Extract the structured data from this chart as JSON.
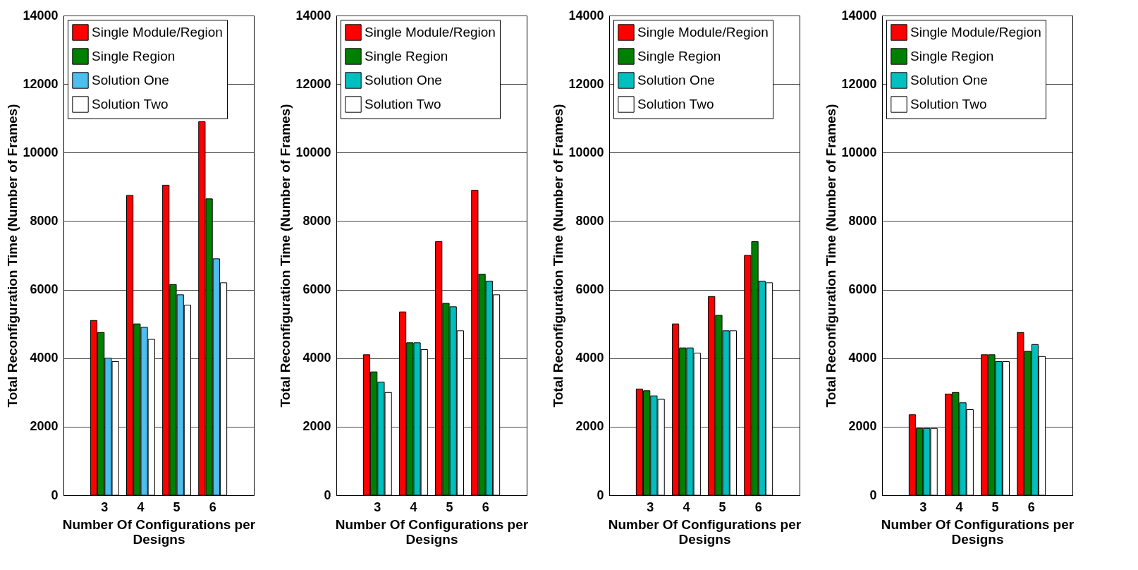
{
  "chart_data": [
    {
      "type": "bar",
      "categories": [
        "3",
        "4",
        "5",
        "6"
      ],
      "xlabel": "Number Of Configurations per Designs",
      "ylabel": "Total Reconfiguration Time (Number of Frames)",
      "ylim": [
        0,
        14000
      ],
      "yticks": [
        0,
        2000,
        4000,
        6000,
        8000,
        10000,
        12000,
        14000
      ],
      "grid": "y",
      "legend": "top left",
      "series": [
        {
          "name": "Single Module/Region",
          "color": "#ff0000",
          "values": [
            5100,
            8750,
            9050,
            10900
          ]
        },
        {
          "name": "Single Region",
          "color": "#008000",
          "values": [
            4750,
            5000,
            6150,
            8650
          ]
        },
        {
          "name": "Solution One",
          "color": "#4dbeee",
          "values": [
            4000,
            4900,
            5850,
            6900
          ]
        },
        {
          "name": "Solution Two",
          "color": "#ffffff",
          "values": [
            3900,
            4550,
            5550,
            6200
          ]
        }
      ]
    },
    {
      "type": "bar",
      "categories": [
        "3",
        "4",
        "5",
        "6"
      ],
      "xlabel": "Number Of Configurations per Designs",
      "ylabel": "Total Reconfiguration Time (Number of Frames)",
      "ylim": [
        0,
        14000
      ],
      "yticks": [
        0,
        2000,
        4000,
        6000,
        8000,
        10000,
        12000,
        14000
      ],
      "grid": "y",
      "legend": "top left",
      "series": [
        {
          "name": "Single Module/Region",
          "color": "#ff0000",
          "values": [
            4100,
            5350,
            7400,
            8900
          ]
        },
        {
          "name": "Single Region",
          "color": "#008000",
          "values": [
            3600,
            4450,
            5600,
            6450
          ]
        },
        {
          "name": "Solution One",
          "color": "#00bfbf",
          "values": [
            3300,
            4450,
            5500,
            6250
          ]
        },
        {
          "name": "Solution Two",
          "color": "#ffffff",
          "values": [
            3000,
            4250,
            4800,
            5850
          ]
        }
      ]
    },
    {
      "type": "bar",
      "categories": [
        "3",
        "4",
        "5",
        "6"
      ],
      "xlabel": "Number Of Configurations per Designs",
      "ylabel": "Total Reconfiguration Time (Number of Frames)",
      "ylim": [
        0,
        14000
      ],
      "yticks": [
        0,
        2000,
        4000,
        6000,
        8000,
        10000,
        12000,
        14000
      ],
      "grid": "y",
      "legend": "top left",
      "series": [
        {
          "name": "Single Module/Region",
          "color": "#ff0000",
          "values": [
            3100,
            5000,
            5800,
            7000
          ]
        },
        {
          "name": "Single Region",
          "color": "#008000",
          "values": [
            3050,
            4300,
            5250,
            7400
          ]
        },
        {
          "name": "Solution One",
          "color": "#00bfbf",
          "values": [
            2900,
            4300,
            4800,
            6250
          ]
        },
        {
          "name": "Solution Two",
          "color": "#ffffff",
          "values": [
            2800,
            4150,
            4800,
            6200
          ]
        }
      ]
    },
    {
      "type": "bar",
      "categories": [
        "3",
        "4",
        "5",
        "6"
      ],
      "xlabel": "Number Of Configurations per Designs",
      "ylabel": "Total Reconfiguration Time (Number of Frames)",
      "ylim": [
        0,
        14000
      ],
      "yticks": [
        0,
        2000,
        4000,
        6000,
        8000,
        10000,
        12000,
        14000
      ],
      "grid": "y",
      "legend": "top left",
      "series": [
        {
          "name": "Single Module/Region",
          "color": "#ff0000",
          "values": [
            2350,
            2950,
            4100,
            4750
          ]
        },
        {
          "name": "Single Region",
          "color": "#008000",
          "values": [
            1950,
            3000,
            4100,
            4200
          ]
        },
        {
          "name": "Solution One",
          "color": "#00bfbf",
          "values": [
            1950,
            2700,
            3900,
            4400
          ]
        },
        {
          "name": "Solution Two",
          "color": "#ffffff",
          "values": [
            1950,
            2500,
            3900,
            4050
          ]
        }
      ]
    }
  ]
}
